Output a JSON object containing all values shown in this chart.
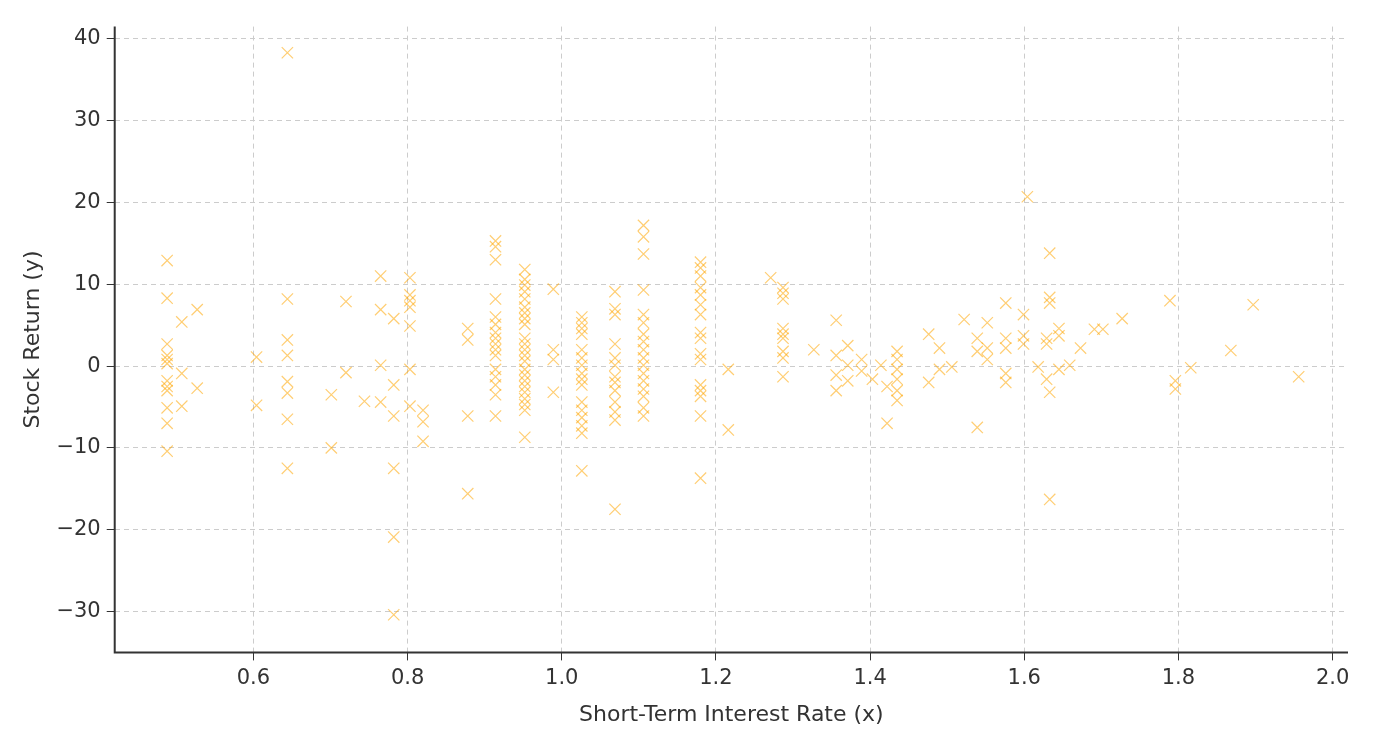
{
  "chart_data": {
    "type": "scatter",
    "xlabel": "Short-Term Interest Rate (x)",
    "ylabel": "Stock Return (y)",
    "marker": "cross",
    "grid": true,
    "xlim": [
      0.42,
      2.02
    ],
    "xticks": [
      0.6,
      0.8,
      {
        "value": 1.0,
        "label": "1.0"
      },
      1.2,
      1.4,
      1.6,
      1.8,
      {
        "value": 2.0,
        "label": "2.0"
      }
    ],
    "ylim": [
      -35,
      41.5
    ],
    "yticks": [
      {
        "value": -30,
        "label": "−30"
      },
      {
        "value": -20,
        "label": "−20"
      },
      {
        "value": -10,
        "label": "−10"
      },
      0,
      10,
      20,
      30,
      40
    ],
    "series": [
      {
        "color": "#ffa500",
        "x": [
          0.488,
          0.488,
          0.488,
          0.488,
          0.488,
          0.488,
          0.488,
          0.488,
          0.488,
          0.488,
          0.488,
          0.488,
          0.507,
          0.507,
          0.507,
          0.527,
          0.527,
          0.604,
          0.604,
          0.644,
          0.644,
          0.644,
          0.644,
          0.644,
          0.644,
          0.644,
          0.644,
          0.701,
          0.701,
          0.72,
          0.72,
          0.744,
          0.765,
          0.765,
          0.765,
          0.765,
          0.782,
          0.782,
          0.782,
          0.782,
          0.782,
          0.782,
          0.803,
          0.803,
          0.803,
          0.803,
          0.803,
          0.803,
          0.803,
          0.82,
          0.82,
          0.82,
          0.878,
          0.878,
          0.878,
          0.878,
          0.914,
          0.914,
          0.914,
          0.914,
          0.914,
          0.914,
          0.914,
          0.914,
          0.914,
          0.914,
          0.914,
          0.914,
          0.914,
          0.914,
          0.914,
          0.914,
          0.952,
          0.952,
          0.952,
          0.952,
          0.952,
          0.952,
          0.952,
          0.952,
          0.952,
          0.952,
          0.952,
          0.952,
          0.952,
          0.952,
          0.952,
          0.952,
          0.952,
          0.952,
          0.952,
          0.952,
          0.952,
          0.952,
          0.952,
          0.989,
          0.989,
          0.989,
          0.989,
          1.026,
          1.026,
          1.026,
          1.026,
          1.026,
          1.026,
          1.026,
          1.026,
          1.026,
          1.026,
          1.026,
          1.026,
          1.026,
          1.026,
          1.026,
          1.026,
          1.069,
          1.069,
          1.069,
          1.069,
          1.069,
          1.069,
          1.069,
          1.069,
          1.069,
          1.069,
          1.069,
          1.069,
          1.069,
          1.106,
          1.106,
          1.106,
          1.106,
          1.106,
          1.106,
          1.106,
          1.106,
          1.106,
          1.106,
          1.106,
          1.106,
          1.106,
          1.106,
          1.106,
          1.106,
          1.106,
          1.18,
          1.18,
          1.18,
          1.18,
          1.18,
          1.18,
          1.18,
          1.18,
          1.18,
          1.18,
          1.18,
          1.18,
          1.18,
          1.18,
          1.18,
          1.18,
          1.216,
          1.216,
          1.271,
          1.287,
          1.287,
          1.287,
          1.287,
          1.287,
          1.287,
          1.287,
          1.287,
          1.287,
          1.327,
          1.356,
          1.356,
          1.356,
          1.356,
          1.371,
          1.371,
          1.371,
          1.389,
          1.389,
          1.403,
          1.414,
          1.422,
          1.422,
          1.435,
          1.435,
          1.435,
          1.435,
          1.435,
          1.435,
          1.476,
          1.476,
          1.49,
          1.49,
          1.506,
          1.522,
          1.539,
          1.539,
          1.539,
          1.552,
          1.552,
          1.552,
          1.576,
          1.576,
          1.576,
          1.576,
          1.576,
          1.599,
          1.599,
          1.599,
          1.604,
          1.618,
          1.629,
          1.629,
          1.629,
          1.633,
          1.633,
          1.633,
          1.633,
          1.633,
          1.645,
          1.645,
          1.645,
          1.659,
          1.673,
          1.691,
          1.702,
          1.727,
          1.789,
          1.796,
          1.796,
          1.816,
          1.868,
          1.897,
          1.956
        ],
        "values": [
          12.9,
          8.3,
          2.7,
          1.3,
          0.8,
          0.3,
          -1.8,
          -2.5,
          -3,
          -5.1,
          -7,
          -10.4,
          5.4,
          -0.9,
          -4.9,
          6.9,
          -2.7,
          1.1,
          -4.8,
          38.3,
          8.2,
          3.2,
          1.3,
          -1.9,
          -3.3,
          -6.5,
          -12.5,
          -3.5,
          -10,
          7.9,
          -0.8,
          -4.3,
          11,
          6.9,
          0.1,
          -4.4,
          5.8,
          -2.3,
          -6.1,
          -12.5,
          -20.9,
          -30.4,
          10.8,
          8.7,
          8,
          7.2,
          4.9,
          -0.4,
          -4.9,
          -5.4,
          -6.8,
          -9.2,
          4.6,
          3.2,
          -6.1,
          -15.6,
          15.3,
          14.6,
          13,
          8.2,
          6,
          5.1,
          4.1,
          3.4,
          2.7,
          2,
          1.3,
          -0.4,
          -1.3,
          -2.3,
          -3.5,
          -6.1,
          11.8,
          10.6,
          9.9,
          9.1,
          8.2,
          7.2,
          6.5,
          5.8,
          5.1,
          3.4,
          2.7,
          2,
          1.3,
          0.6,
          -0.4,
          -1.1,
          -1.8,
          -2.5,
          -3.2,
          -4,
          -4.7,
          -5.4,
          -8.7,
          9.4,
          2,
          0.8,
          -3.2,
          6,
          5.3,
          4.6,
          3.9,
          2,
          1,
          0.1,
          -0.9,
          -1.6,
          -2.3,
          -4.4,
          -5.4,
          -6.3,
          -7.3,
          -8.2,
          -12.8,
          9.1,
          7,
          6.3,
          2.7,
          1,
          0.1,
          -1.3,
          -2,
          -3,
          -4.4,
          -5.6,
          -6.6,
          -17.5,
          17.2,
          15.8,
          13.7,
          9.3,
          6.3,
          5.3,
          3.9,
          3,
          2,
          1,
          0.1,
          -0.9,
          -1.8,
          -2.8,
          -3.7,
          -5.1,
          -6.1,
          12.7,
          12,
          11,
          9.6,
          8.7,
          7.5,
          6.3,
          4.1,
          3.4,
          1.5,
          0.8,
          -2.3,
          -3,
          -3.7,
          -6.1,
          -13.7,
          -0.4,
          -7.8,
          10.8,
          9.6,
          8.9,
          8.2,
          4.6,
          3.9,
          3.4,
          1.8,
          1,
          -1.3,
          2,
          5.6,
          1.3,
          -1.1,
          -3,
          2.5,
          0.1,
          -1.8,
          0.8,
          -0.6,
          -1.6,
          0.1,
          -7,
          -2.5,
          1.8,
          0.8,
          -0.4,
          -1.6,
          -3,
          -4.2,
          3.9,
          -2,
          2.2,
          -0.4,
          -0.1,
          5.7,
          3.4,
          1.8,
          -7.5,
          5.3,
          2.2,
          0.8,
          7.7,
          3.4,
          2.2,
          -0.9,
          -2,
          6.3,
          3.7,
          2.7,
          20.7,
          -0.1,
          3.4,
          2.7,
          -1.6,
          13.8,
          8.4,
          7.7,
          -3.2,
          -16.3,
          4.6,
          3.7,
          -0.4,
          0.1,
          2.2,
          4.5,
          4.5,
          5.8,
          8,
          -2.8,
          -1.8,
          -0.2,
          1.9,
          7.5,
          -1.3
        ]
      }
    ]
  }
}
